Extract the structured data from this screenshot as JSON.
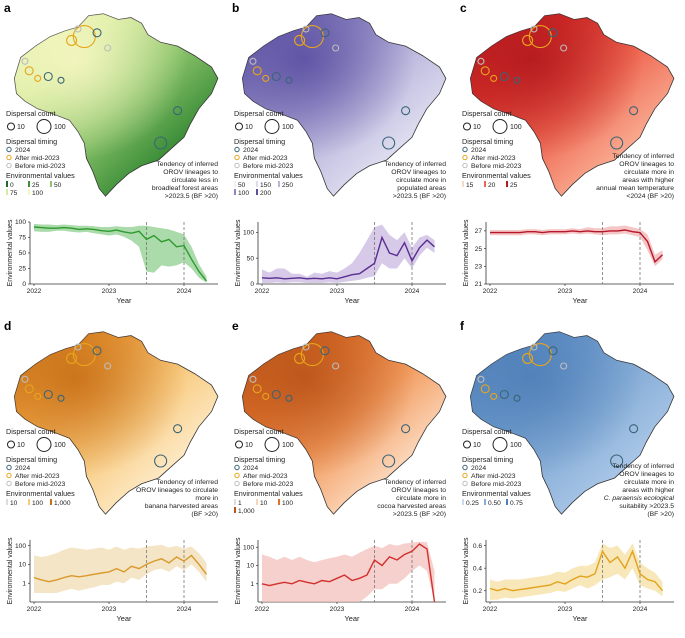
{
  "legend": {
    "dispersal_count_title": "Dispersal count",
    "dispersal_count_values": [
      "10",
      "100"
    ],
    "dispersal_timing_title": "Dispersal timing",
    "timing": [
      "2024",
      "After mid-2023",
      "Before mid-2023"
    ],
    "timing_colors": [
      "#3a6478",
      "#e7a51b",
      "#bdbdbd"
    ],
    "env_title": "Environmental values"
  },
  "axis": {
    "xlabel": "Year",
    "ylabel": "Environmental values",
    "x_ticks": [
      "2022",
      "2023",
      "2024"
    ]
  },
  "panels": [
    {
      "letter": "a",
      "map_colors": [
        "#1f6b33",
        "#3e8f3a",
        "#8cc46b",
        "#d4ec9e",
        "#f6f6c2"
      ],
      "env_ticks": [
        "0",
        "25",
        "50",
        "75",
        "100"
      ],
      "annotation": [
        "Tendency of inferred",
        "OROV lineages to",
        "circulate less in",
        "broadleaf forest areas",
        ">2023.5 (BF >20)"
      ],
      "line_color": "#2e9a2e",
      "band_color": "#8fcf8f"
    },
    {
      "letter": "b",
      "map_colors": [
        "#f2f1f9",
        "#dddcef",
        "#b9b6dc",
        "#8d87c2",
        "#5b4fa2"
      ],
      "env_ticks": [
        "50",
        "150",
        "250",
        "100",
        "200"
      ],
      "annotation": [
        "Tendency of inferred",
        "OROV lineages to",
        "circulate more in",
        "populated areas",
        ">2023.5 (BF >20)"
      ],
      "line_color": "#5a2d91",
      "band_color": "#c9b8e0"
    },
    {
      "letter": "c",
      "map_colors": [
        "#fbd7c9",
        "#f8a88e",
        "#ef6650",
        "#d9322a",
        "#b3191e"
      ],
      "env_ticks": [
        "15",
        "20",
        "25"
      ],
      "annotation": [
        "Tendency of inferred",
        "OROV lineages to",
        "circulate more in",
        "areas with higher",
        "annual mean temperature",
        "<2024 (BF >20)"
      ],
      "line_color": "#b5172a",
      "band_color": "#f2b3b3"
    },
    {
      "letter": "d",
      "map_colors": [
        "#ffffff",
        "#fde8c2",
        "#f8c97c",
        "#eea13f",
        "#c76f17"
      ],
      "env_ticks": [
        "10",
        "100",
        "1,000"
      ],
      "annotation": [
        "Tendency of inferred",
        "OROV lineages to circulate",
        "more in",
        "banana harvested areas",
        "(BF >20)"
      ],
      "line_color": "#d99a2b",
      "band_color": "#f0dcb4"
    },
    {
      "letter": "e",
      "map_colors": [
        "#ffffff",
        "#fbd5b8",
        "#f29a5c",
        "#e0712a",
        "#b9541a"
      ],
      "env_ticks": [
        "1",
        "10",
        "100",
        "1,000"
      ],
      "annotation": [
        "Tendency of inferred",
        "OROV lineages to",
        "circulate more in",
        "cocoa harvested areas",
        ">2023.5 (BF >20)"
      ],
      "line_color": "#d2302e",
      "band_color": "#f2c0bb"
    },
    {
      "letter": "f",
      "map_colors": [
        "#c9dbef",
        "#a7c5e6",
        "#85acd6",
        "#6896c9",
        "#4f7fb8"
      ],
      "env_ticks": [
        "0.25",
        "0.50",
        "0.75"
      ],
      "annotation": [
        "Tendency of inferred",
        "OROV lineages to",
        "circulate more in",
        "areas with higher",
        "C. paraensis ecological",
        "suitability >2023.5",
        "(BF >20)"
      ],
      "line_color": "#e2a21c",
      "band_color": "#f6dfa0"
    }
  ],
  "chart_data": [
    {
      "panel": "a",
      "type": "line",
      "x": [
        2022.0,
        2022.1,
        2022.2,
        2022.3,
        2022.4,
        2022.5,
        2022.6,
        2022.7,
        2022.8,
        2022.9,
        2023.0,
        2023.1,
        2023.2,
        2023.3,
        2023.4,
        2023.5,
        2023.6,
        2023.7,
        2023.8,
        2023.9,
        2024.0,
        2024.1,
        2024.2,
        2024.3
      ],
      "y": [
        92,
        91,
        90,
        90,
        91,
        90,
        88,
        89,
        88,
        86,
        85,
        87,
        84,
        82,
        85,
        72,
        78,
        68,
        72,
        60,
        62,
        40,
        20,
        5
      ],
      "lower": [
        85,
        84,
        84,
        86,
        86,
        84,
        83,
        84,
        82,
        80,
        78,
        80,
        76,
        70,
        60,
        20,
        18,
        30,
        28,
        30,
        35,
        25,
        10,
        2
      ],
      "upper": [
        97,
        96,
        96,
        95,
        96,
        95,
        94,
        94,
        93,
        92,
        92,
        93,
        92,
        92,
        94,
        94,
        92,
        90,
        88,
        84,
        80,
        60,
        32,
        12
      ],
      "ylim": [
        0,
        100
      ],
      "y_ticks": [
        "0",
        "25",
        "50",
        "75",
        "100"
      ],
      "y_log": false,
      "vlines": [
        2023.5,
        2024.0
      ]
    },
    {
      "panel": "b",
      "type": "line",
      "x": [
        2022.0,
        2022.1,
        2022.2,
        2022.3,
        2022.4,
        2022.5,
        2022.6,
        2022.7,
        2022.8,
        2022.9,
        2023.0,
        2023.1,
        2023.2,
        2023.3,
        2023.4,
        2023.5,
        2023.6,
        2023.7,
        2023.8,
        2023.9,
        2024.0,
        2024.1,
        2024.2,
        2024.3
      ],
      "y": [
        12,
        11,
        12,
        10,
        11,
        12,
        10,
        11,
        10,
        12,
        10,
        14,
        18,
        20,
        30,
        40,
        90,
        60,
        55,
        80,
        45,
        70,
        85,
        72
      ],
      "lower": [
        2,
        2,
        3,
        2,
        3,
        3,
        2,
        2,
        2,
        3,
        2,
        4,
        6,
        8,
        12,
        15,
        40,
        30,
        30,
        50,
        30,
        55,
        70,
        60
      ],
      "upper": [
        28,
        22,
        30,
        30,
        20,
        20,
        14,
        22,
        20,
        25,
        22,
        30,
        40,
        60,
        85,
        110,
        115,
        95,
        85,
        100,
        70,
        90,
        95,
        85
      ],
      "ylim": [
        0,
        120
      ],
      "y_ticks": [
        "0",
        "50",
        "100"
      ],
      "y_log": false,
      "vlines": [
        2023.5,
        2024.0
      ]
    },
    {
      "panel": "c",
      "type": "line",
      "x": [
        2022.0,
        2022.1,
        2022.2,
        2022.3,
        2022.4,
        2022.5,
        2022.6,
        2022.7,
        2022.8,
        2022.9,
        2023.0,
        2023.1,
        2023.2,
        2023.3,
        2023.4,
        2023.5,
        2023.6,
        2023.7,
        2023.8,
        2023.9,
        2024.0,
        2024.1,
        2024.2,
        2024.3
      ],
      "y": [
        26.8,
        26.8,
        26.8,
        26.8,
        26.8,
        26.9,
        26.9,
        26.8,
        26.9,
        26.9,
        26.9,
        27.0,
        26.9,
        27.0,
        26.9,
        26.9,
        27.0,
        27.0,
        27.1,
        26.9,
        26.8,
        25.8,
        23.5,
        24.3
      ],
      "lower": [
        26.5,
        26.5,
        26.5,
        26.5,
        26.5,
        26.6,
        26.6,
        26.5,
        26.6,
        26.6,
        26.6,
        26.7,
        26.6,
        26.7,
        26.6,
        26.5,
        26.6,
        26.6,
        26.7,
        26.5,
        26.3,
        24.8,
        23.0,
        23.8
      ],
      "upper": [
        27.1,
        27.1,
        27.1,
        27.1,
        27.1,
        27.2,
        27.2,
        27.1,
        27.2,
        27.2,
        27.2,
        27.3,
        27.2,
        27.4,
        27.3,
        27.3,
        27.5,
        27.5,
        27.6,
        27.4,
        27.2,
        26.6,
        24.3,
        24.8
      ],
      "ylim": [
        21,
        28
      ],
      "y_ticks": [
        "21",
        "23",
        "25",
        "27"
      ],
      "y_log": false,
      "vlines": [
        2023.5,
        2024.0
      ]
    },
    {
      "panel": "d",
      "type": "line",
      "x": [
        2022.0,
        2022.1,
        2022.2,
        2022.3,
        2022.4,
        2022.5,
        2022.6,
        2022.7,
        2022.8,
        2022.9,
        2023.0,
        2023.1,
        2023.2,
        2023.3,
        2023.4,
        2023.5,
        2023.6,
        2023.7,
        2023.8,
        2023.9,
        2024.0,
        2024.1,
        2024.2,
        2024.3
      ],
      "y": [
        2,
        1.5,
        1.2,
        1.5,
        2,
        2.5,
        2.2,
        2.5,
        3,
        3.5,
        4,
        6,
        4,
        8,
        6,
        10,
        15,
        20,
        12,
        25,
        15,
        30,
        10,
        3
      ],
      "lower": [
        0.3,
        0.3,
        0.3,
        0.3,
        0.4,
        0.5,
        0.4,
        0.5,
        0.6,
        0.8,
        0.8,
        1.2,
        1,
        2,
        1.5,
        3,
        5,
        6,
        4,
        8,
        5,
        10,
        4,
        1.2
      ],
      "upper": [
        30,
        25,
        30,
        40,
        60,
        80,
        70,
        60,
        70,
        80,
        60,
        90,
        60,
        80,
        70,
        90,
        100,
        110,
        80,
        100,
        70,
        90,
        40,
        12
      ],
      "ylim": [
        0.1,
        200
      ],
      "y_ticks": [
        "1",
        "10",
        "100"
      ],
      "y_log": true,
      "vlines": [
        2023.5,
        2024.0
      ]
    },
    {
      "panel": "e",
      "type": "line",
      "x": [
        2022.0,
        2022.1,
        2022.2,
        2022.3,
        2022.4,
        2022.5,
        2022.6,
        2022.7,
        2022.8,
        2022.9,
        2023.0,
        2023.1,
        2023.2,
        2023.3,
        2023.4,
        2023.5,
        2023.6,
        2023.7,
        2023.8,
        2023.9,
        2024.0,
        2024.1,
        2024.2,
        2024.3
      ],
      "y": [
        1,
        0.8,
        1,
        1.2,
        1,
        1.5,
        1.2,
        1,
        1.5,
        1.3,
        2,
        3,
        1.5,
        2,
        3,
        20,
        10,
        30,
        20,
        40,
        60,
        150,
        80,
        0.1
      ],
      "lower": [
        0.1,
        0.1,
        0.1,
        0.1,
        0.1,
        0.1,
        0.1,
        0.1,
        0.1,
        0.1,
        0.1,
        0.1,
        0.1,
        0.1,
        0.2,
        0.5,
        0.5,
        1,
        1,
        2,
        5,
        10,
        5,
        0.1
      ],
      "upper": [
        40,
        30,
        20,
        30,
        20,
        30,
        20,
        15,
        20,
        25,
        30,
        40,
        30,
        50,
        80,
        120,
        90,
        150,
        120,
        160,
        180,
        200,
        190,
        5
      ],
      "ylim": [
        0.1,
        250
      ],
      "y_ticks": [
        "1",
        "10",
        "100"
      ],
      "y_log": true,
      "vlines": [
        2023.5,
        2024.0
      ]
    },
    {
      "panel": "f",
      "type": "line",
      "x": [
        2022.0,
        2022.1,
        2022.2,
        2022.3,
        2022.4,
        2022.5,
        2022.6,
        2022.7,
        2022.8,
        2022.9,
        2023.0,
        2023.1,
        2023.2,
        2023.3,
        2023.4,
        2023.5,
        2023.6,
        2023.7,
        2023.8,
        2023.9,
        2024.0,
        2024.1,
        2024.2,
        2024.3
      ],
      "y": [
        0.22,
        0.2,
        0.22,
        0.2,
        0.21,
        0.22,
        0.23,
        0.24,
        0.25,
        0.28,
        0.26,
        0.3,
        0.33,
        0.32,
        0.35,
        0.55,
        0.45,
        0.5,
        0.4,
        0.55,
        0.35,
        0.3,
        0.28,
        0.2
      ],
      "lower": [
        0.12,
        0.12,
        0.14,
        0.13,
        0.14,
        0.15,
        0.16,
        0.17,
        0.18,
        0.2,
        0.19,
        0.22,
        0.25,
        0.22,
        0.25,
        0.3,
        0.32,
        0.35,
        0.3,
        0.4,
        0.25,
        0.22,
        0.2,
        0.15
      ],
      "upper": [
        0.3,
        0.28,
        0.3,
        0.3,
        0.3,
        0.31,
        0.32,
        0.33,
        0.34,
        0.37,
        0.36,
        0.4,
        0.42,
        0.42,
        0.45,
        0.62,
        0.58,
        0.6,
        0.52,
        0.62,
        0.45,
        0.4,
        0.36,
        0.28
      ],
      "ylim": [
        0.1,
        0.65
      ],
      "y_ticks": [
        "0.2",
        "0.4",
        "0.6"
      ],
      "y_log": false,
      "vlines": [
        2023.5,
        2024.0
      ]
    }
  ]
}
